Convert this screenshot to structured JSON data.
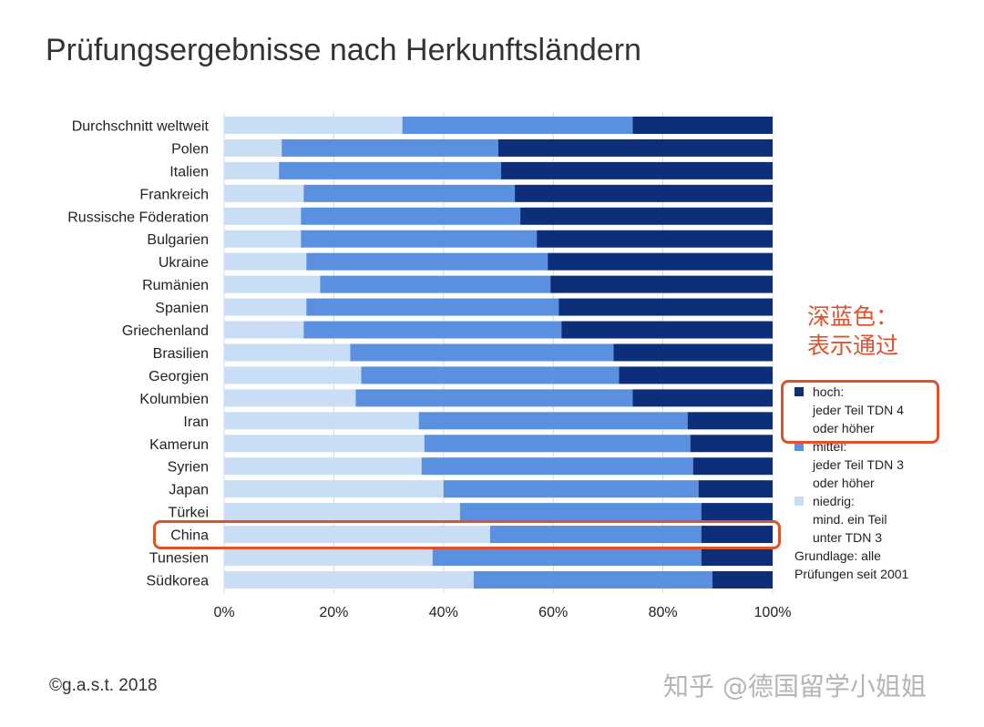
{
  "title": "Prüfungsergebnisse nach Herkunftsländern",
  "colors": {
    "low": "#c9ddf5",
    "mid": "#5b8fe0",
    "high": "#0d2f7a",
    "grid": "#d9d9d9",
    "highlight": "#e0522c"
  },
  "annotation": {
    "line1": "深蓝色：",
    "line2": "表示通过"
  },
  "legend": {
    "high": {
      "line1": "hoch:",
      "line2": "jeder Teil TDN 4",
      "line3": "oder höher"
    },
    "mid": {
      "line1": "mittel:",
      "line2": "jeder Teil TDN 3",
      "line3": "oder höher"
    },
    "low": {
      "line1": "niedrig:",
      "line2": "mind. ein Teil",
      "line3": "unter TDN 3"
    },
    "note_line1": "Grundlage: alle",
    "note_line2": "Prüfungen seit 2001"
  },
  "copyright": "©g.a.s.t. 2018",
  "watermark": "知乎 @德国留学小姐姐",
  "chart_data": {
    "type": "bar",
    "orientation": "horizontal",
    "stacked": true,
    "percent": true,
    "title": "Prüfungsergebnisse nach Herkunftsländern",
    "categories": [
      "Durchschnitt weltweit",
      "Polen",
      "Italien",
      "Frankreich",
      "Russische Föderation",
      "Bulgarien",
      "Ukraine",
      "Rumänien",
      "Spanien",
      "Griechenland",
      "Brasilien",
      "Georgien",
      "Kolumbien",
      "Iran",
      "Kamerun",
      "Syrien",
      "Japan",
      "Türkei",
      "China",
      "Tunesien",
      "Südkorea"
    ],
    "series": [
      {
        "name": "niedrig",
        "values": [
          32.5,
          10.5,
          10,
          14.5,
          14,
          14,
          15,
          17.5,
          15,
          14.5,
          23,
          25,
          24,
          35.5,
          36.5,
          36,
          40,
          43,
          48.5,
          38,
          45.5
        ]
      },
      {
        "name": "mittel",
        "values": [
          42,
          39.5,
          40.5,
          38.5,
          40,
          43,
          44,
          42,
          46,
          47,
          48,
          47,
          50.5,
          49,
          48.5,
          49.5,
          46.5,
          44,
          38.5,
          49,
          43.5
        ]
      },
      {
        "name": "hoch",
        "values": [
          25.5,
          50,
          49.5,
          47,
          46,
          43,
          41,
          40.5,
          39,
          38.5,
          29,
          28,
          25.5,
          15.5,
          15,
          14.5,
          13.5,
          13,
          13,
          13,
          11
        ]
      }
    ],
    "xlim": [
      0,
      100
    ],
    "xticks": [
      "0%",
      "20%",
      "40%",
      "60%",
      "80%",
      "100%"
    ],
    "grid": true,
    "highlighted_category": "China"
  }
}
